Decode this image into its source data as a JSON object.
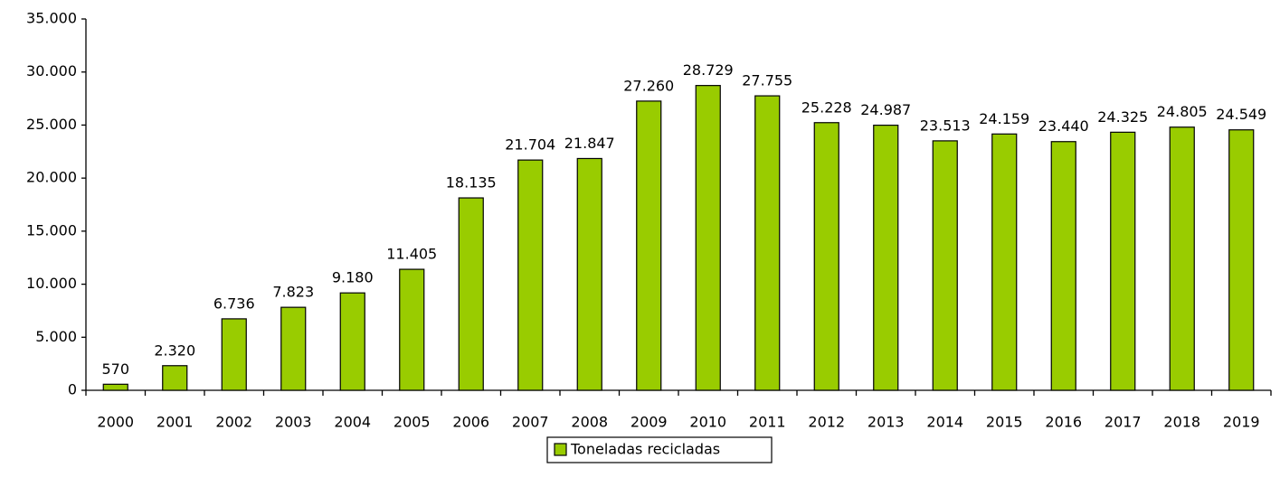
{
  "chart_data": {
    "type": "bar",
    "categories": [
      "2000",
      "2001",
      "2002",
      "2003",
      "2004",
      "2005",
      "2006",
      "2007",
      "2008",
      "2009",
      "2010",
      "2011",
      "2012",
      "2013",
      "2014",
      "2015",
      "2016",
      "2017",
      "2018",
      "2019"
    ],
    "series": [
      {
        "name": "Toneladas recicladas",
        "color": "#99cc00",
        "values": [
          570,
          2320,
          6736,
          7823,
          9180,
          11405,
          18135,
          21704,
          21847,
          27260,
          28729,
          27755,
          25228,
          24987,
          23513,
          24159,
          23440,
          24325,
          24805,
          24549
        ],
        "value_labels": [
          "570",
          "2.320",
          "6.736",
          "7.823",
          "9.180",
          "11.405",
          "18.135",
          "21.704",
          "21.847",
          "27.260",
          "28.729",
          "27.755",
          "25.228",
          "24.987",
          "23.513",
          "24.159",
          "23.440",
          "24.325",
          "24.805",
          "24.549"
        ]
      }
    ],
    "ylim": [
      0,
      35000
    ],
    "yticks": [
      0,
      {
        "value": 5000,
        "label": "5.000"
      },
      {
        "value": 10000,
        "label": "10.000"
      },
      {
        "value": 15000,
        "label": "15.000"
      },
      {
        "value": 20000,
        "label": "20.000"
      },
      {
        "value": 25000,
        "label": "25.000"
      },
      {
        "value": 30000,
        "label": "30.000"
      },
      {
        "value": 35000,
        "label": "35.000"
      }
    ],
    "grid": false,
    "legend": "bottom"
  }
}
